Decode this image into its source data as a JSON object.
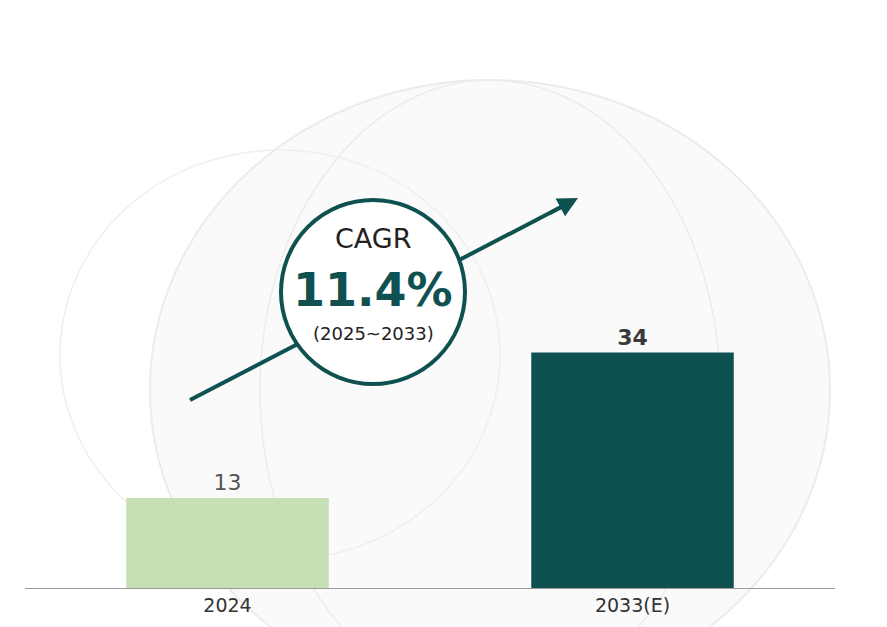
{
  "chart_data": {
    "type": "bar",
    "categories": [
      "2024",
      "2033(E)"
    ],
    "values": [
      13,
      34
    ],
    "colors": [
      "#c5e0b4",
      "#0f5050"
    ],
    "ylim": [
      0,
      80
    ],
    "data_labels": true,
    "tick_labels": "x",
    "grid": false,
    "annotations": [
      "CAGR",
      "11.4%",
      "(2025~2033)"
    ]
  }
}
